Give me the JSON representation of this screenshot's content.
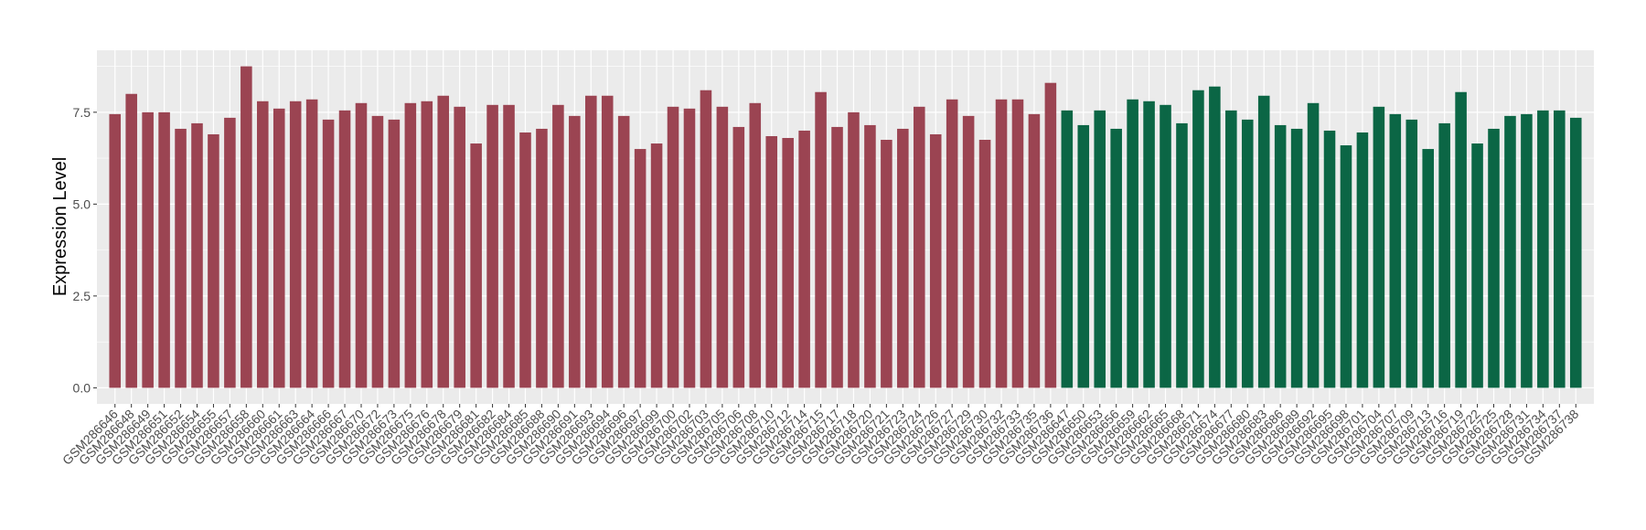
{
  "chart_data": {
    "type": "bar",
    "y_label": "Expression Level",
    "categories": [
      "GSM286646",
      "GSM286648",
      "GSM286649",
      "GSM286651",
      "GSM286652",
      "GSM286654",
      "GSM286655",
      "GSM286657",
      "GSM286658",
      "GSM286660",
      "GSM286661",
      "GSM286663",
      "GSM286664",
      "GSM286666",
      "GSM286667",
      "GSM286670",
      "GSM286672",
      "GSM286673",
      "GSM286675",
      "GSM286676",
      "GSM286678",
      "GSM286679",
      "GSM286681",
      "GSM286682",
      "GSM286684",
      "GSM286685",
      "GSM286688",
      "GSM286690",
      "GSM286691",
      "GSM286693",
      "GSM286694",
      "GSM286696",
      "GSM286697",
      "GSM286699",
      "GSM286700",
      "GSM286702",
      "GSM286703",
      "GSM286705",
      "GSM286706",
      "GSM286708",
      "GSM286710",
      "GSM286712",
      "GSM286714",
      "GSM286715",
      "GSM286717",
      "GSM286718",
      "GSM286720",
      "GSM286721",
      "GSM286723",
      "GSM286724",
      "GSM286726",
      "GSM286727",
      "GSM286729",
      "GSM286730",
      "GSM286732",
      "GSM286733",
      "GSM286735",
      "GSM286736",
      "GSM286647",
      "GSM286650",
      "GSM286653",
      "GSM286656",
      "GSM286659",
      "GSM286662",
      "GSM286665",
      "GSM286668",
      "GSM286671",
      "GSM286674",
      "GSM286677",
      "GSM286680",
      "GSM286683",
      "GSM286686",
      "GSM286689",
      "GSM286692",
      "GSM286695",
      "GSM286698",
      "GSM286701",
      "GSM286704",
      "GSM286707",
      "GSM286709",
      "GSM286713",
      "GSM286716",
      "GSM286719",
      "GSM286722",
      "GSM286725",
      "GSM286728",
      "GSM286731",
      "GSM286734",
      "GSM286737",
      "GSM286738"
    ],
    "values": [
      7.45,
      8.0,
      7.5,
      7.5,
      7.05,
      7.2,
      6.9,
      7.35,
      8.75,
      7.8,
      7.6,
      7.8,
      7.85,
      7.3,
      7.55,
      7.75,
      7.4,
      7.3,
      7.75,
      7.8,
      7.95,
      7.65,
      6.65,
      7.7,
      7.7,
      6.95,
      7.05,
      7.7,
      7.4,
      7.95,
      7.95,
      7.4,
      6.5,
      6.65,
      7.65,
      7.6,
      8.1,
      7.65,
      7.1,
      7.75,
      6.85,
      6.8,
      7.0,
      8.05,
      7.1,
      7.5,
      7.15,
      6.75,
      7.05,
      7.65,
      6.9,
      7.85,
      7.4,
      6.75,
      7.85,
      7.85,
      7.45,
      8.3,
      7.55,
      7.15,
      7.55,
      7.05,
      7.85,
      7.8,
      7.7,
      7.2,
      8.1,
      8.2,
      7.55,
      7.3,
      7.95,
      7.15,
      7.05,
      7.75,
      7.0,
      6.6,
      6.95,
      7.65,
      7.45,
      7.3,
      6.5,
      7.2,
      8.05,
      6.65,
      7.05,
      7.4,
      7.45,
      7.55,
      7.55,
      7.35
    ],
    "colors": [
      "#9b4452",
      "#9b4452",
      "#9b4452",
      "#9b4452",
      "#9b4452",
      "#9b4452",
      "#9b4452",
      "#9b4452",
      "#9b4452",
      "#9b4452",
      "#9b4452",
      "#9b4452",
      "#9b4452",
      "#9b4452",
      "#9b4452",
      "#9b4452",
      "#9b4452",
      "#9b4452",
      "#9b4452",
      "#9b4452",
      "#9b4452",
      "#9b4452",
      "#9b4452",
      "#9b4452",
      "#9b4452",
      "#9b4452",
      "#9b4452",
      "#9b4452",
      "#9b4452",
      "#9b4452",
      "#9b4452",
      "#9b4452",
      "#9b4452",
      "#9b4452",
      "#9b4452",
      "#9b4452",
      "#9b4452",
      "#9b4452",
      "#9b4452",
      "#9b4452",
      "#9b4452",
      "#9b4452",
      "#9b4452",
      "#9b4452",
      "#9b4452",
      "#9b4452",
      "#9b4452",
      "#9b4452",
      "#9b4452",
      "#9b4452",
      "#9b4452",
      "#9b4452",
      "#9b4452",
      "#9b4452",
      "#9b4452",
      "#9b4452",
      "#9b4452",
      "#9b4452",
      "#0b6645",
      "#0b6645",
      "#0b6645",
      "#0b6645",
      "#0b6645",
      "#0b6645",
      "#0b6645",
      "#0b6645",
      "#0b6645",
      "#0b6645",
      "#0b6645",
      "#0b6645",
      "#0b6645",
      "#0b6645",
      "#0b6645",
      "#0b6645",
      "#0b6645",
      "#0b6645",
      "#0b6645",
      "#0b6645",
      "#0b6645",
      "#0b6645",
      "#0b6645",
      "#0b6645",
      "#0b6645",
      "#0b6645",
      "#0b6645",
      "#0b6645",
      "#0b6645",
      "#0b6645",
      "#0b6645",
      "#0b6645"
    ],
    "ylim": [
      -0.4375,
      9.1875
    ],
    "yticks": [
      {
        "value": 0,
        "label": "0.0"
      },
      {
        "value": 2.5,
        "label": "2.5"
      },
      {
        "value": 5,
        "label": "5.0"
      },
      {
        "value": 7.5,
        "label": "7.5"
      }
    ],
    "grid": true
  }
}
